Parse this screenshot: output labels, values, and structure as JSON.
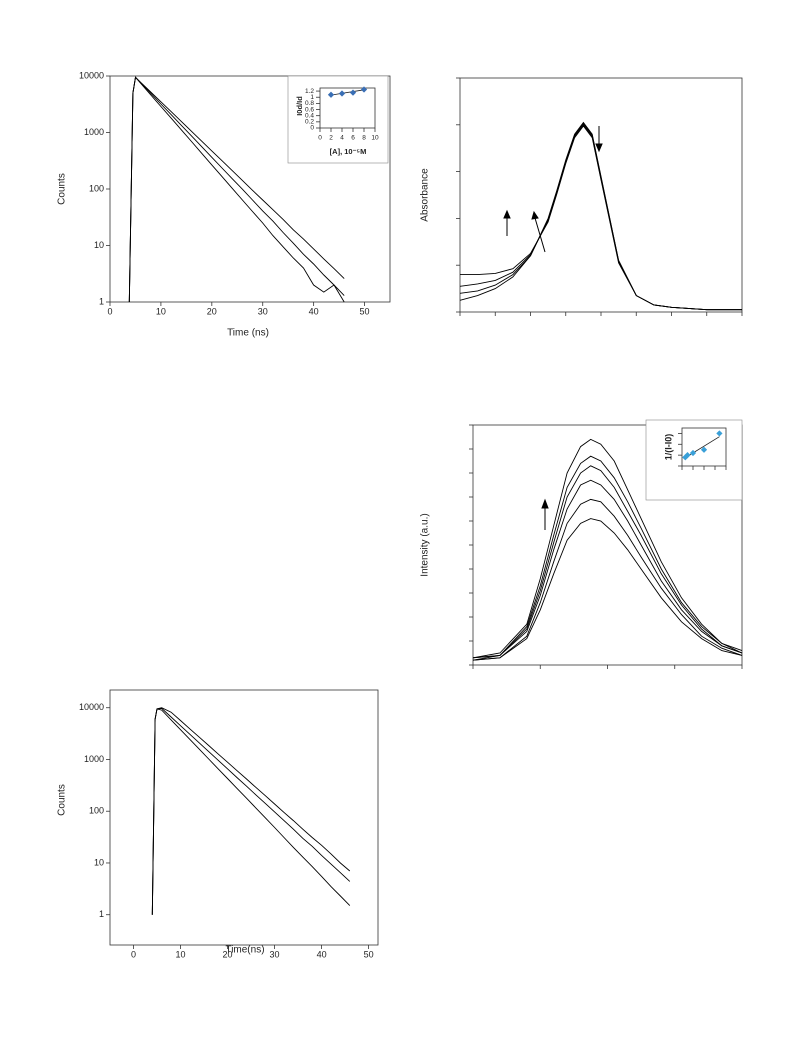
{
  "chart_data": [
    {
      "type": "line",
      "xlabel": "Time (ns)",
      "ylabel": "Counts",
      "log_y": true,
      "xlim": [
        0,
        55
      ],
      "xticks": [
        0,
        10,
        20,
        30,
        40,
        50
      ],
      "ylim": [
        1,
        10000
      ],
      "yticks": [
        1,
        10,
        100,
        1000,
        10000
      ],
      "x": [
        3.8,
        4.5,
        5,
        6,
        8,
        10,
        12,
        14,
        16,
        18,
        20,
        22,
        24,
        26,
        28,
        30,
        32,
        34,
        36,
        38,
        40,
        42,
        44,
        46
      ],
      "series": [
        {
          "color": "#000000",
          "values": [
            1,
            5000,
            9500,
            7490,
            4650,
            2890,
            1795,
            1115,
            692,
            430,
            267,
            166,
            103,
            64,
            40,
            25,
            15,
            9.5,
            6,
            4,
            2,
            1.5,
            2,
            1
          ]
        },
        {
          "color": "#000000",
          "values": [
            1,
            5000,
            9500,
            7650,
            4960,
            3200,
            2070,
            1340,
            870,
            562,
            364,
            235,
            152,
            99,
            64,
            41,
            27,
            17,
            11,
            7,
            4.7,
            3,
            2,
            1.3
          ]
        },
        {
          "color": "#000000",
          "values": [
            1,
            5000,
            9500,
            7780,
            5210,
            3490,
            2340,
            1570,
            1050,
            705,
            473,
            317,
            212,
            142,
            95,
            64,
            43,
            29,
            19,
            13,
            8.7,
            5.8,
            3.9,
            2.6
          ]
        }
      ],
      "inset": {
        "type": "scatter",
        "xlabel": "[A], 10⁻⁵M",
        "ylabel": "I0d/Id",
        "color": "#3a6fb5",
        "xlim": [
          0,
          10
        ],
        "xticks": [
          0,
          2,
          4,
          6,
          8,
          10
        ],
        "ylim": [
          0,
          1.3
        ],
        "yticks": [
          0,
          0.2,
          0.4,
          0.6,
          0.8,
          1,
          1.2
        ],
        "x": [
          2,
          4,
          6,
          8
        ],
        "values": [
          1.08,
          1.12,
          1.15,
          1.25
        ],
        "fit": {
          "x": [
            2,
            8
          ],
          "values": [
            1.07,
            1.24
          ]
        }
      }
    },
    {
      "type": "line",
      "ylabel": "Absorbance",
      "tick_labels": false,
      "xlim": [
        0,
        8
      ],
      "xticks": [
        0,
        1,
        2,
        3,
        4,
        5,
        6,
        7,
        8
      ],
      "ylim": [
        0,
        1
      ],
      "yticks": [
        0,
        0.2,
        0.4,
        0.6,
        0.8,
        1
      ],
      "x": [
        0,
        0.5,
        1,
        1.5,
        2,
        2.5,
        2.75,
        3,
        3.25,
        3.5,
        3.75,
        4,
        4.5,
        5,
        5.5,
        6,
        7,
        8
      ],
      "series": [
        {
          "color": "#000000",
          "values": [
            0.05,
            0.07,
            0.1,
            0.15,
            0.24,
            0.4,
            0.52,
            0.65,
            0.76,
            0.81,
            0.76,
            0.58,
            0.22,
            0.07,
            0.03,
            0.02,
            0.01,
            0.01
          ]
        },
        {
          "color": "#000000",
          "values": [
            0.08,
            0.09,
            0.115,
            0.16,
            0.24,
            0.395,
            0.515,
            0.645,
            0.755,
            0.805,
            0.755,
            0.575,
            0.22,
            0.07,
            0.03,
            0.02,
            0.01,
            0.01
          ]
        },
        {
          "color": "#000000",
          "values": [
            0.11,
            0.12,
            0.135,
            0.17,
            0.245,
            0.39,
            0.51,
            0.64,
            0.75,
            0.8,
            0.75,
            0.57,
            0.215,
            0.07,
            0.03,
            0.02,
            0.01,
            0.01
          ]
        },
        {
          "color": "#000000",
          "values": [
            0.16,
            0.16,
            0.165,
            0.185,
            0.25,
            0.385,
            0.505,
            0.635,
            0.745,
            0.795,
            0.745,
            0.565,
            0.21,
            0.07,
            0.03,
            0.02,
            0.01,
            0.01
          ]
        }
      ]
    },
    {
      "type": "line",
      "ylabel": "Intensity (a.u.)",
      "tick_labels": false,
      "xlim": [
        0,
        4
      ],
      "xticks": [
        0,
        1,
        2,
        3,
        4
      ],
      "ylim": [
        0,
        10
      ],
      "yticks": [
        0,
        1,
        2,
        3,
        4,
        5,
        6,
        7,
        8,
        9,
        10
      ],
      "x": [
        0,
        0.4,
        0.8,
        1.0,
        1.2,
        1.4,
        1.6,
        1.75,
        1.9,
        2.1,
        2.3,
        2.5,
        2.8,
        3.1,
        3.4,
        3.7,
        4.0
      ],
      "series": [
        {
          "color": "#000000",
          "values": [
            0.3,
            0.5,
            1.7,
            3.6,
            5.8,
            8.0,
            9.1,
            9.4,
            9.2,
            8.5,
            7.3,
            6.1,
            4.3,
            2.8,
            1.7,
            0.9,
            0.6
          ]
        },
        {
          "color": "#000000",
          "values": [
            0.3,
            0.4,
            1.6,
            3.3,
            5.4,
            7.4,
            8.4,
            8.7,
            8.5,
            7.8,
            6.8,
            5.7,
            4.0,
            2.6,
            1.6,
            0.9,
            0.5
          ]
        },
        {
          "color": "#000000",
          "values": [
            0.3,
            0.4,
            1.5,
            3.1,
            5.1,
            7.0,
            8.0,
            8.3,
            8.1,
            7.4,
            6.4,
            5.4,
            3.8,
            2.5,
            1.5,
            0.8,
            0.5
          ]
        },
        {
          "color": "#000000",
          "values": [
            0.2,
            0.4,
            1.4,
            2.9,
            4.8,
            6.5,
            7.5,
            7.7,
            7.5,
            6.9,
            6.0,
            5.0,
            3.5,
            2.3,
            1.4,
            0.8,
            0.5
          ]
        },
        {
          "color": "#000000",
          "values": [
            0.2,
            0.3,
            1.2,
            2.6,
            4.3,
            5.9,
            6.7,
            6.9,
            6.8,
            6.2,
            5.4,
            4.5,
            3.2,
            2.1,
            1.2,
            0.7,
            0.4
          ]
        },
        {
          "color": "#000000",
          "values": [
            0.2,
            0.3,
            1.1,
            2.3,
            3.8,
            5.2,
            5.9,
            6.1,
            6.0,
            5.5,
            4.8,
            4.0,
            2.8,
            1.8,
            1.1,
            0.6,
            0.4
          ]
        }
      ],
      "inset": {
        "type": "scatter",
        "ylabel": "1/(I-I0)",
        "color": "#3aa0d8",
        "tick_labels": false,
        "xlim": [
          0,
          4
        ],
        "xticks": [
          0,
          1,
          2,
          3,
          4
        ],
        "ylim": [
          0,
          3.5
        ],
        "yticks": [
          0,
          1,
          2,
          3
        ],
        "x": [
          0.3,
          0.5,
          1.0,
          2.0,
          3.4
        ],
        "values": [
          0.8,
          1.0,
          1.2,
          1.5,
          3.0
        ],
        "fit": {
          "x": [
            0.2,
            3.4
          ],
          "values": [
            0.7,
            2.7
          ]
        }
      }
    },
    {
      "type": "line",
      "xlabel": "Time(ns)",
      "ylabel": "Counts",
      "log_y": true,
      "xlim": [
        -5,
        52
      ],
      "xticks": [
        0,
        10,
        20,
        30,
        40,
        50
      ],
      "ylim": [
        0.26,
        22000
      ],
      "yticks": [
        1,
        10,
        100,
        1000,
        10000
      ],
      "x": [
        4,
        4.6,
        5,
        6,
        8,
        10,
        12,
        14,
        16,
        18,
        20,
        22,
        24,
        26,
        28,
        30,
        32,
        34,
        36,
        38,
        40,
        42,
        44,
        46
      ],
      "series": [
        {
          "color": "#000000",
          "values": [
            1,
            6000,
            9500,
            9000,
            5825,
            3769,
            2439,
            1578,
            1021,
            661,
            428,
            277,
            179,
            116,
            75,
            48.5,
            31,
            20,
            13,
            8.5,
            5.5,
            3.5,
            2.3,
            1.5
          ]
        },
        {
          "color": "#000000",
          "values": [
            1,
            6000,
            9500,
            9700,
            6606,
            4499,
            3064,
            2086,
            1421,
            968,
            659,
            449,
            306,
            208,
            142,
            97,
            66,
            45,
            30,
            21,
            14,
            9.5,
            6.5,
            4.4
          ]
        },
        {
          "color": "#000000",
          "values": [
            1,
            6000,
            9500,
            10000,
            8200,
            5660,
            3900,
            2690,
            1860,
            1280,
            885,
            610,
            421,
            290,
            200,
            138,
            95,
            66,
            45,
            31,
            22,
            15,
            10,
            7
          ]
        }
      ]
    }
  ]
}
